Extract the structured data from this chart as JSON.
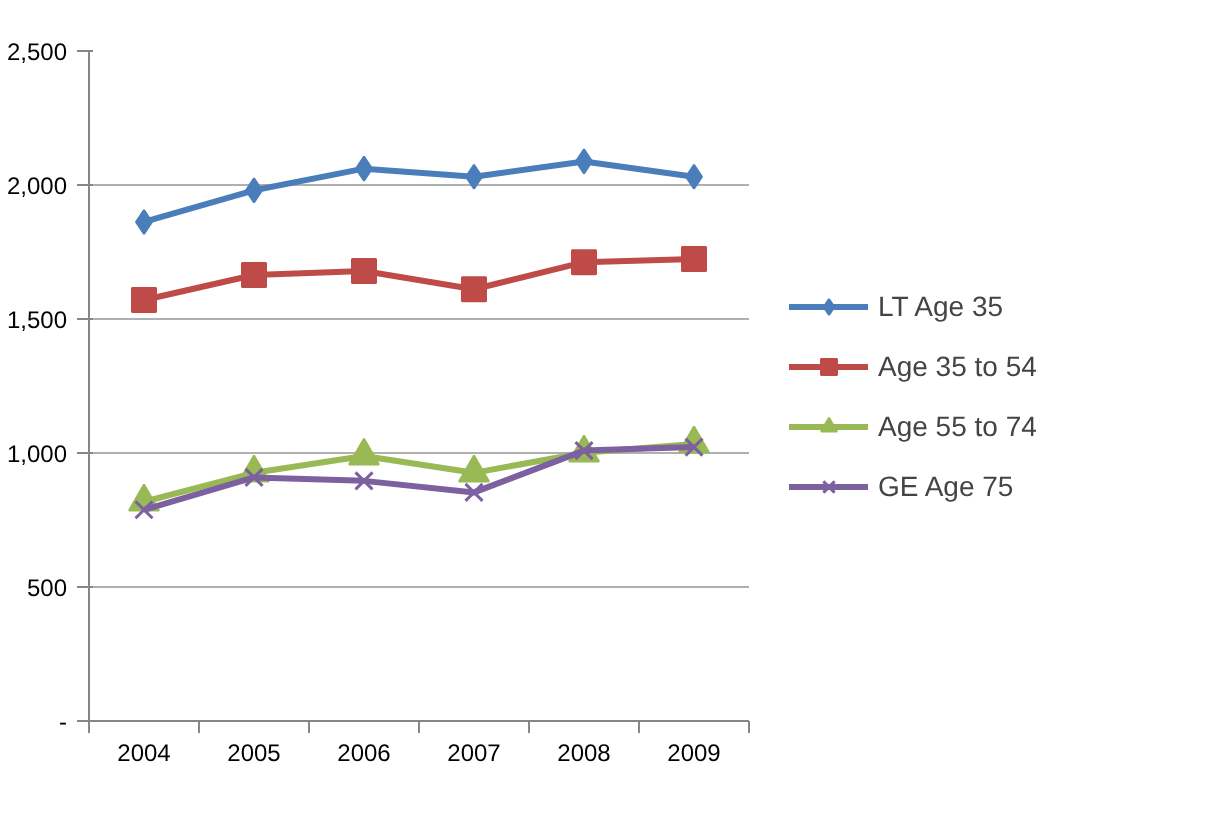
{
  "chart_data": {
    "type": "line",
    "categories": [
      "2004",
      "2005",
      "2006",
      "2007",
      "2008",
      "2009"
    ],
    "series": [
      {
        "name": "LT Age 35",
        "color": "#4a7ebb",
        "marker": "diamond",
        "values": [
          1862,
          1980,
          2061,
          2031,
          2088,
          2031
        ]
      },
      {
        "name": "Age 35 to 54",
        "color": "#be4b48",
        "marker": "square",
        "values": [
          1571,
          1664,
          1679,
          1611,
          1712,
          1724
        ]
      },
      {
        "name": "Age 55 to 74",
        "color": "#98b954",
        "marker": "triangle",
        "values": [
          818,
          926,
          989,
          926,
          1001,
          1034
        ]
      },
      {
        "name": "GE Age 75",
        "color": "#7d60a0",
        "marker": "cross",
        "values": [
          788,
          909,
          896,
          853,
          1009,
          1022
        ]
      }
    ],
    "ylim": [
      0,
      2500
    ],
    "yticks": [
      {
        "value": 0,
        "label": "-"
      },
      {
        "value": 500,
        "label": "500"
      },
      {
        "value": 1000,
        "label": "1,000"
      },
      {
        "value": 1500,
        "label": "1,500"
      },
      {
        "value": 2000,
        "label": "2,000"
      },
      {
        "value": 2500,
        "label": "2,500"
      }
    ],
    "grid": "y",
    "legend": "right",
    "line_style": "solid"
  }
}
